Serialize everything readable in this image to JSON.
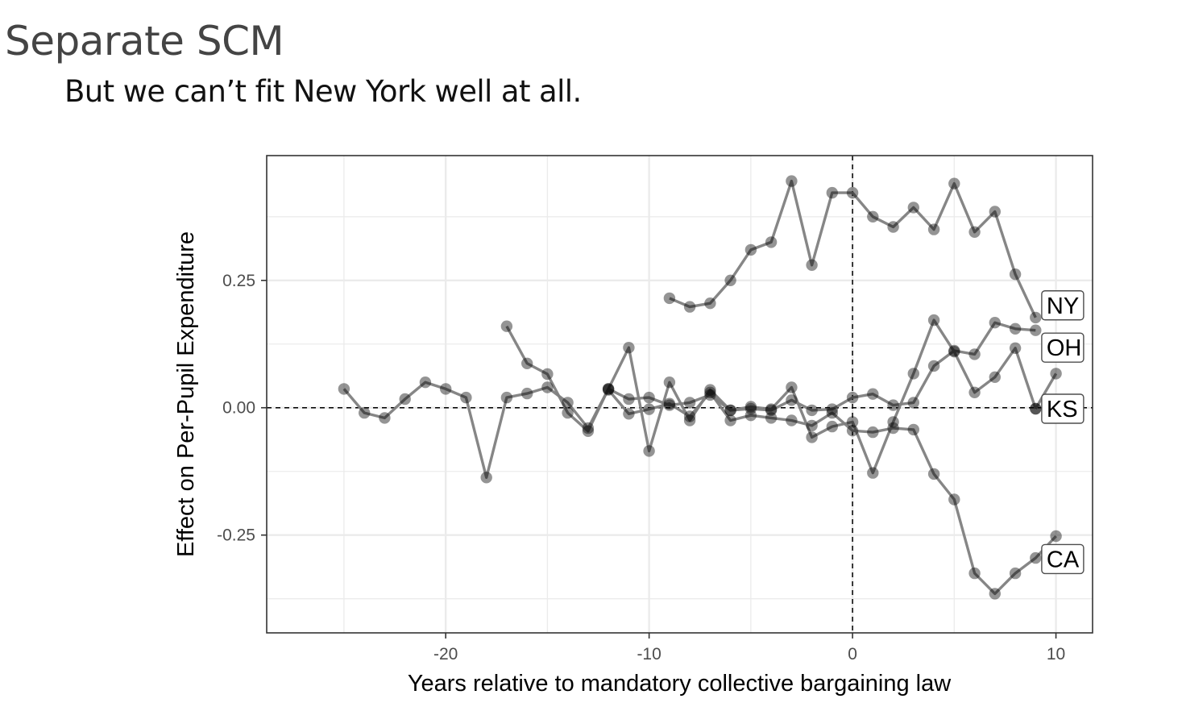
{
  "slide": {
    "title": "Separate SCM",
    "subtitle": "But we can’t fit New York well at all."
  },
  "chart_data": {
    "type": "line",
    "title": "",
    "xlabel": "Years relative to mandatory collective bargaining law",
    "ylabel": "Effect on Per-Pupil Expenditure",
    "xlim": [
      -28.8,
      11.8
    ],
    "ylim": [
      -0.442,
      0.495
    ],
    "xticks": [
      -20,
      -10,
      0,
      10
    ],
    "xtick_labels": [
      "-20",
      "-10",
      "0",
      "10"
    ],
    "yticks": [
      -0.25,
      0,
      0.25
    ],
    "ytick_labels": [
      "-0.25",
      "0.00",
      "0.25"
    ],
    "reference_lines": {
      "vertical_x": 0,
      "horizontal_y": 0
    },
    "grid": true,
    "colors": {
      "point": "#000000",
      "line": "#808080",
      "grid": "#ebebeb",
      "frame": "#333333"
    },
    "series": [
      {
        "name": "NY",
        "label_box_x": 9.3,
        "label_box_y": 0.201,
        "x": [
          -9,
          -8,
          -7,
          -6,
          -5,
          -4,
          -3,
          -2,
          -1,
          0,
          1,
          2,
          3,
          4,
          5,
          6,
          7,
          8,
          9
        ],
        "values": [
          0.215,
          0.198,
          0.205,
          0.25,
          0.31,
          0.325,
          0.445,
          0.28,
          0.422,
          0.422,
          0.375,
          0.355,
          0.393,
          0.35,
          0.44,
          0.345,
          0.385,
          0.262,
          0.177
        ]
      },
      {
        "name": "OH",
        "label_box_x": 9.3,
        "label_box_y": 0.118,
        "x": [
          -17,
          -16,
          -15,
          -14,
          -13,
          -12,
          -11,
          -10,
          -9,
          -8,
          -7,
          -6,
          -5,
          -4,
          -3,
          -2,
          -1,
          0,
          1,
          2,
          3,
          4,
          5,
          6,
          7,
          8,
          9
        ],
        "values": [
          0.16,
          0.087,
          0.066,
          -0.01,
          -0.046,
          0.037,
          0.118,
          -0.085,
          0.05,
          -0.025,
          0.035,
          -0.005,
          0.002,
          -0.003,
          0.04,
          -0.058,
          -0.037,
          -0.028,
          -0.128,
          -0.028,
          0.067,
          0.172,
          0.11,
          0.03,
          0.06,
          0.117,
          -0.002
        ]
      },
      {
        "name": "KS",
        "label_box_x": 9.3,
        "label_box_y": -0.002,
        "x": [
          -25,
          -24,
          -23,
          -22,
          -21,
          -20,
          -19,
          -18,
          -17,
          -16,
          -15,
          -14,
          -13,
          -12,
          -11,
          -10,
          -9,
          -8,
          -7,
          -6,
          -5,
          -4,
          -3,
          -2,
          -1,
          0,
          1,
          2,
          3,
          4,
          5,
          6,
          7,
          8,
          9
        ],
        "values": [
          0.037,
          -0.01,
          -0.02,
          0.017,
          0.05,
          0.037,
          0.02,
          -0.137,
          0.02,
          0.028,
          0.04,
          0.01,
          -0.04,
          0.037,
          0.017,
          0.02,
          0.005,
          0.01,
          0.025,
          -0.005,
          -0.002,
          -0.005,
          0.015,
          -0.005,
          -0.003,
          0.02,
          0.027,
          0.005,
          0.01,
          0.082,
          0.112,
          0.105,
          0.167,
          0.155,
          0.152
        ]
      },
      {
        "name": "CA",
        "label_box_x": 9.3,
        "label_box_y": -0.297,
        "x": [
          -12,
          -11,
          -10,
          -9,
          -8,
          -7,
          -6,
          -5,
          -4,
          -3,
          -2,
          -1,
          0,
          1,
          2,
          3,
          4,
          5,
          6,
          7,
          8,
          9,
          10
        ],
        "values": [
          0.035,
          -0.012,
          -0.003,
          0.008,
          -0.017,
          0.03,
          -0.025,
          -0.015,
          -0.02,
          -0.025,
          -0.035,
          -0.01,
          -0.045,
          -0.048,
          -0.04,
          -0.043,
          -0.13,
          -0.18,
          -0.325,
          -0.365,
          -0.325,
          -0.295,
          -0.252
        ]
      },
      {
        "name": "",
        "x": [
          9,
          10
        ],
        "values": [
          -0.002,
          0.067
        ]
      }
    ]
  }
}
